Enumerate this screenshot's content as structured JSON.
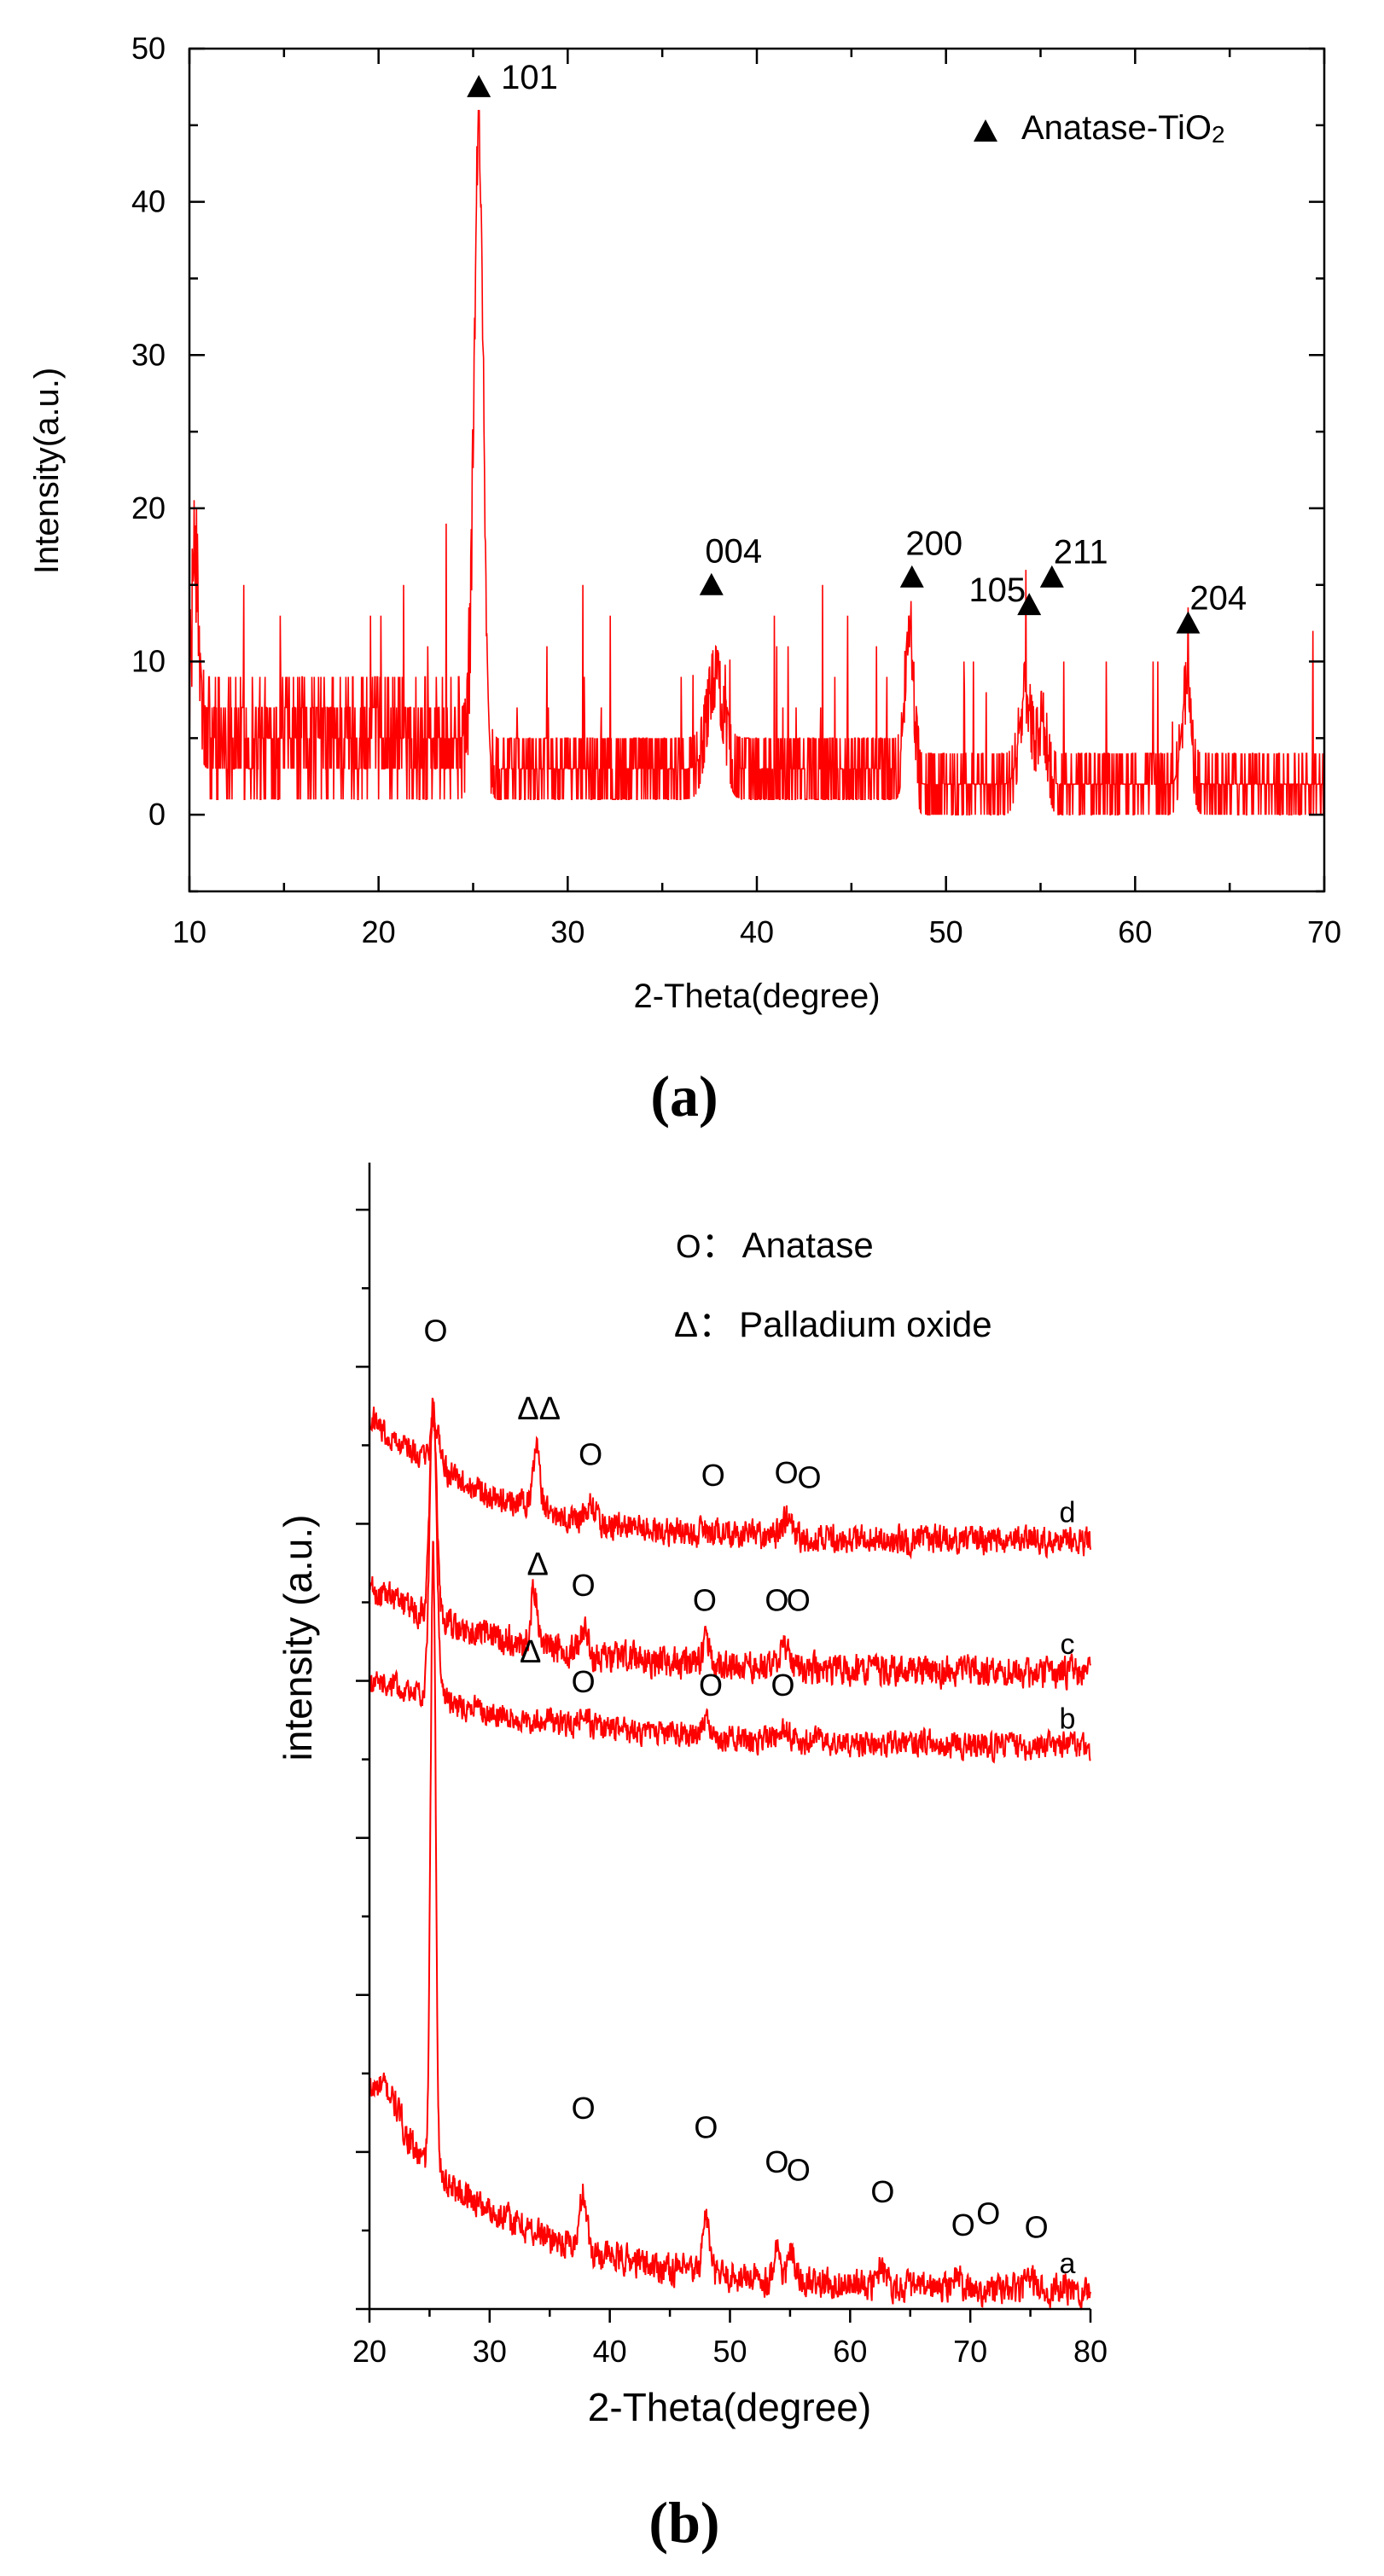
{
  "colors": {
    "trace": "#ff0000",
    "axis": "#000000",
    "marker": "#000000",
    "background": "#ffffff"
  },
  "panel_labels": [
    {
      "open": "(",
      "letter": "a",
      "close": ")"
    },
    {
      "open": "(",
      "letter": "b",
      "close": ")"
    }
  ],
  "chart_data": [
    {
      "type": "line",
      "panel": "a",
      "title": "",
      "xlabel": "2-Theta(degree)",
      "ylabel": "Intensity(a.u.)",
      "xlim": [
        10,
        70
      ],
      "ylim": [
        -5,
        50
      ],
      "xticks": [
        10,
        20,
        30,
        40,
        50,
        60,
        70
      ],
      "yticks": [
        0,
        10,
        20,
        30,
        40,
        50
      ],
      "grid": false,
      "legend": {
        "position": "top-right",
        "symbol": "filled-triangle",
        "label": "Anatase-TiO",
        "subscript": "2"
      },
      "baseline": {
        "x_ranges": [
          [
            10,
            25.0
          ],
          [
            26.0,
            48.6
          ],
          [
            48.6,
            70
          ]
        ],
        "levels": [
          5,
          3,
          2
        ],
        "noise": [
          4,
          3,
          2
        ]
      },
      "peaks": [
        {
          "x": 10.3,
          "height": 12,
          "width": 0.25
        },
        {
          "x": 25.3,
          "height": 43,
          "width": 0.35
        },
        {
          "x": 37.8,
          "height": 6,
          "width": 0.6
        },
        {
          "x": 48.05,
          "height": 10,
          "width": 0.3
        },
        {
          "x": 54.2,
          "height": 6,
          "width": 0.45
        },
        {
          "x": 55.1,
          "height": 4,
          "width": 0.35
        },
        {
          "x": 62.7,
          "height": 6,
          "width": 0.35
        }
      ],
      "annotations": [
        {
          "label": "101",
          "x": 25.3,
          "y": 47.5,
          "label_side": "right"
        },
        {
          "label": "004",
          "x": 37.6,
          "y": 15,
          "label_side": "above"
        },
        {
          "label": "200",
          "x": 48.2,
          "y": 15.5,
          "label_side": "above"
        },
        {
          "label": "105",
          "x": 54.4,
          "y": 13.7,
          "label_side": "left"
        },
        {
          "label": "211",
          "x": 55.6,
          "y": 15.5,
          "label_side": "above-right"
        },
        {
          "label": "204",
          "x": 62.8,
          "y": 12.5,
          "label_side": "above-right"
        }
      ]
    },
    {
      "type": "line",
      "panel": "b",
      "title": "",
      "xlabel": "2-Theta(degree)",
      "ylabel": "intensity (a.u.)",
      "xlim": [
        20,
        80
      ],
      "ylim": [
        0,
        100
      ],
      "xticks": [
        20,
        30,
        40,
        50,
        60,
        70,
        80
      ],
      "yticks": [],
      "grid": false,
      "legend": {
        "position": "top-right",
        "entries": [
          {
            "symbol": "O",
            "separator": "：",
            "label": "Anatase"
          },
          {
            "symbol": "Δ",
            "separator": "：",
            "label": "Palladium oxide"
          }
        ]
      },
      "series": [
        {
          "name": "a",
          "baseline_start": 18,
          "baseline_end": 1.5,
          "decay": 12,
          "noise": 1.2,
          "peaks": [
            {
              "x": 21.5,
              "height": 3,
              "width": 1.5
            },
            {
              "x": 25.3,
              "height": 54,
              "width": 0.3
            },
            {
              "x": 37.8,
              "height": 5,
              "width": 0.4
            },
            {
              "x": 48.0,
              "height": 5,
              "width": 0.4
            },
            {
              "x": 53.9,
              "height": 3,
              "width": 0.4
            },
            {
              "x": 55.1,
              "height": 2.5,
              "width": 0.4
            },
            {
              "x": 62.7,
              "height": 2,
              "width": 0.5
            },
            {
              "x": 68.8,
              "height": 1.2,
              "width": 0.5
            },
            {
              "x": 75.1,
              "height": 1,
              "width": 0.5
            }
          ],
          "markers": [
            {
              "symbol": "O",
              "x": 37.8,
              "y": 17.5
            },
            {
              "symbol": "O",
              "x": 48.0,
              "y": 15.8
            },
            {
              "symbol": "O",
              "x": 53.9,
              "y": 12.8
            },
            {
              "symbol": "O",
              "x": 55.7,
              "y": 12.1
            },
            {
              "symbol": "O",
              "x": 62.7,
              "y": 10.2
            },
            {
              "symbol": "O",
              "x": 69.4,
              "y": 7.3
            },
            {
              "symbol": "O",
              "x": 71.5,
              "y": 8.3
            },
            {
              "symbol": "O",
              "x": 75.5,
              "y": 7.1
            }
          ]
        },
        {
          "name": "b",
          "baseline_start": 55,
          "baseline_end": 49,
          "decay": 15,
          "noise": 1.0,
          "peaks": [
            {
              "x": 25.3,
              "height": 26,
              "width": 0.4
            },
            {
              "x": 37.8,
              "height": 1.2,
              "width": 0.5
            },
            {
              "x": 48.0,
              "height": 1.5,
              "width": 0.5
            },
            {
              "x": 54.5,
              "height": 1,
              "width": 0.6
            }
          ],
          "markers": [
            {
              "symbol": "Δ",
              "x": 33.4,
              "y": 57.3
            },
            {
              "symbol": "O",
              "x": 37.8,
              "y": 54.7
            },
            {
              "symbol": "O",
              "x": 48.4,
              "y": 54.4
            },
            {
              "symbol": "O",
              "x": 54.4,
              "y": 54.4
            }
          ]
        },
        {
          "name": "c",
          "baseline_start": 63,
          "baseline_end": 55.5,
          "decay": 12,
          "noise": 1.2,
          "peaks": [
            {
              "x": 25.3,
              "height": 18,
              "width": 0.4
            },
            {
              "x": 33.7,
              "height": 5,
              "width": 0.35
            },
            {
              "x": 37.8,
              "height": 2,
              "width": 0.4
            },
            {
              "x": 48.0,
              "height": 2,
              "width": 0.4
            },
            {
              "x": 54.5,
              "height": 2,
              "width": 0.5
            }
          ],
          "markers": [
            {
              "symbol": "Δ",
              "x": 34.0,
              "y": 64.9
            },
            {
              "symbol": "O",
              "x": 37.8,
              "y": 63.1
            },
            {
              "symbol": "O",
              "x": 47.9,
              "y": 61.8
            },
            {
              "symbol": "O",
              "x": 53.9,
              "y": 61.8
            },
            {
              "symbol": "O",
              "x": 55.7,
              "y": 61.8
            }
          ]
        },
        {
          "name": "d",
          "baseline_start": 78,
          "baseline_end": 67,
          "decay": 10,
          "noise": 1.1,
          "peaks": [
            {
              "x": 25.5,
              "height": 4,
              "width": 0.5
            },
            {
              "x": 33.9,
              "height": 5,
              "width": 0.4
            },
            {
              "x": 38.4,
              "height": 1.5,
              "width": 0.5
            },
            {
              "x": 54.8,
              "height": 1.5,
              "width": 0.6
            }
          ],
          "markers": [
            {
              "symbol": "O",
              "x": 25.5,
              "y": 85.3
            },
            {
              "symbol": "ΔΔ",
              "x": 34.1,
              "y": 78.5
            },
            {
              "symbol": "O",
              "x": 38.4,
              "y": 74.5
            },
            {
              "symbol": "O",
              "x": 48.6,
              "y": 72.7
            },
            {
              "symbol": "O",
              "x": 54.7,
              "y": 72.9
            },
            {
              "symbol": "O",
              "x": 56.6,
              "y": 72.5
            }
          ]
        }
      ]
    }
  ]
}
